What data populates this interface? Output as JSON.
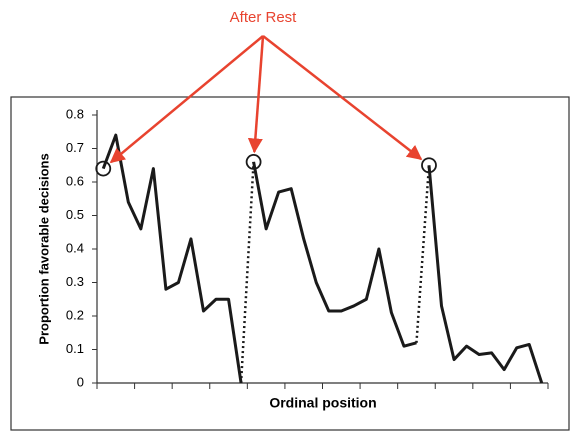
{
  "chart_data": {
    "type": "line",
    "annotation": "After Rest",
    "annotation_color": "#e8432f",
    "xlabel": "Ordinal position",
    "ylabel": "Proportion favorable decisions",
    "color": "#1a1a1a",
    "rest_style": "dotted",
    "rest_marker": "circle",
    "series": [
      {
        "x": [
          1,
          2,
          3,
          4,
          5,
          6,
          7,
          8,
          9,
          10,
          11,
          12
        ],
        "values": [
          0.64,
          0.74,
          0.54,
          0.46,
          0.64,
          0.28,
          0.3,
          0.43,
          0.215,
          0.25,
          0.25,
          0
        ]
      },
      {
        "x": [
          13,
          14,
          15,
          16,
          17,
          18,
          19,
          20,
          21,
          22,
          23,
          24,
          25,
          26
        ],
        "values": [
          0.66,
          0.46,
          0.57,
          0.58,
          0.43,
          0.3,
          0.215,
          0.215,
          0.23,
          0.25,
          0.4,
          0.21,
          0.11,
          0.12
        ]
      },
      {
        "x": [
          27,
          28,
          29,
          30,
          31,
          32,
          33,
          34,
          35,
          36
        ],
        "values": [
          0.65,
          0.23,
          0.07,
          0.11,
          0.085,
          0.09,
          0.04,
          0.105,
          0.115,
          0
        ]
      }
    ],
    "xlim": [
      0.5,
      36.5
    ],
    "xticks": [
      0.5,
      3.5,
      6.5,
      9.5,
      12.5,
      15.5,
      18.5,
      21.5,
      24.5,
      27.5,
      30.5,
      33.5,
      36.5
    ],
    "ylim": [
      0,
      0.8
    ],
    "yticks": [
      0,
      0.1,
      0.2,
      0.3,
      0.4,
      0.5,
      0.6,
      0.7,
      0.8
    ]
  }
}
